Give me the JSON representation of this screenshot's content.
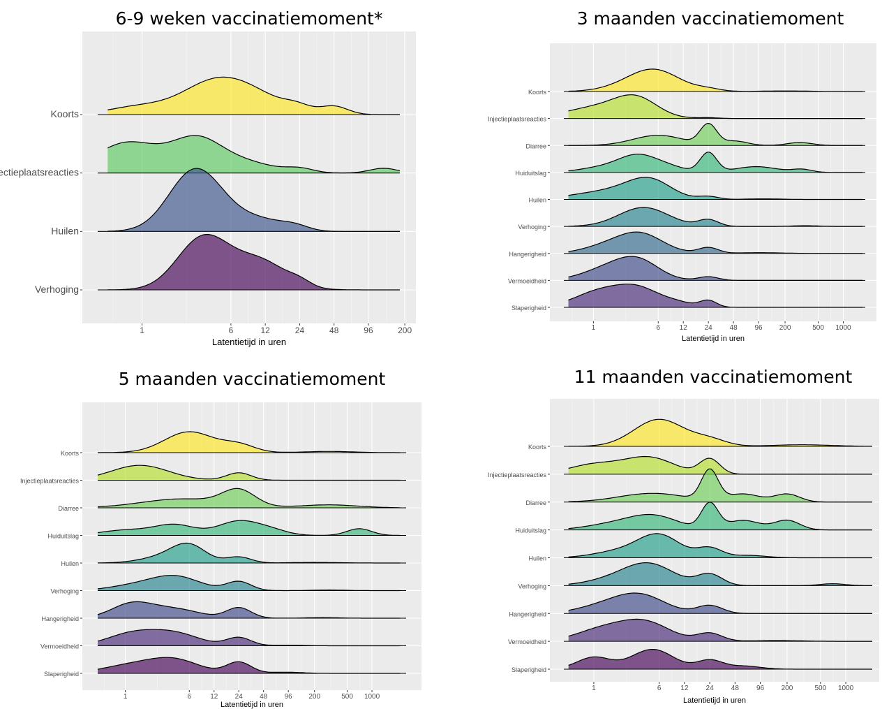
{
  "titles": {
    "c1": "6-9 weken vaccinatiemoment*",
    "c2": "3 maanden vaccinatiemoment",
    "c3": "5 maanden vaccinatiemoment",
    "c4": "11 maanden vaccinatiemoment"
  },
  "chart_data": [
    {
      "type": "area",
      "title": "6-9 weken vaccinatiemoment*",
      "xlabel": "Latentietijd in uren",
      "ylabel": "",
      "x_scale": "log",
      "xlim": [
        0.3,
        250
      ],
      "x_ticks": [
        1,
        6,
        12,
        24,
        48,
        96,
        200
      ],
      "grid": true,
      "series": [
        {
          "name": "Koorts",
          "color": "#fde725",
          "peaks": [
            [
              0.9,
              0.22,
              0.25
            ],
            [
              4.5,
              1.0,
              0.3
            ],
            [
              11,
              0.3,
              0.25
            ],
            [
              23,
              0.18,
              0.12
            ],
            [
              48,
              0.24,
              0.12
            ]
          ]
        },
        {
          "name": "Injectieplaatsreacties",
          "color": "#5ec962",
          "peaks": [
            [
              0.75,
              0.9,
              0.28
            ],
            [
              3,
              0.95,
              0.22
            ],
            [
              8,
              0.3,
              0.25
            ],
            [
              24,
              0.12,
              0.12
            ],
            [
              130,
              0.14,
              0.12
            ]
          ]
        },
        {
          "name": "Huilen",
          "color": "#3b528b",
          "peaks": [
            [
              2.8,
              1.5,
              0.22
            ],
            [
              5,
              0.5,
              0.3
            ],
            [
              13,
              0.15,
              0.18
            ],
            [
              22,
              0.13,
              0.12
            ]
          ]
        },
        {
          "name": "Verhoging",
          "color": "#440154",
          "peaks": [
            [
              3.3,
              1.3,
              0.22
            ],
            [
              7,
              0.55,
              0.3
            ],
            [
              12,
              0.45,
              0.2
            ],
            [
              24,
              0.15,
              0.1
            ]
          ]
        }
      ]
    },
    {
      "type": "area",
      "title": "3 maanden vaccinatiemoment",
      "xlabel": "Latentietijd in uren",
      "ylabel": "",
      "x_scale": "log",
      "xlim": [
        0.3,
        2500
      ],
      "x_ticks": [
        1,
        6,
        12,
        24,
        48,
        96,
        200,
        500,
        1000
      ],
      "grid": true,
      "series": [
        {
          "name": "Koorts",
          "color": "#fde725",
          "peaks": [
            [
              5.5,
              1.4,
              0.3
            ],
            [
              2.5,
              0.25,
              0.3
            ],
            [
              24,
              0.15,
              0.15
            ],
            [
              200,
              0.04,
              0.3
            ]
          ]
        },
        {
          "name": "Injectieplaatsreacties",
          "color": "#b5de2b",
          "peaks": [
            [
              1.2,
              0.8,
              0.4
            ],
            [
              3.3,
              1.15,
              0.25
            ],
            [
              24,
              0.05,
              0.12
            ]
          ]
        },
        {
          "name": "Diarree",
          "color": "#6ece58",
          "peaks": [
            [
              6,
              0.7,
              0.3
            ],
            [
              24,
              1.4,
              0.1
            ],
            [
              50,
              0.3,
              0.15
            ],
            [
              300,
              0.2,
              0.15
            ]
          ]
        },
        {
          "name": "Huiduitslag",
          "color": "#35b779",
          "peaks": [
            [
              1.5,
              0.4,
              0.3
            ],
            [
              3.5,
              1.0,
              0.22
            ],
            [
              8,
              0.35,
              0.2
            ],
            [
              24,
              1.35,
              0.1
            ],
            [
              90,
              0.4,
              0.25
            ],
            [
              320,
              0.2,
              0.12
            ]
          ]
        },
        {
          "name": "Huilen",
          "color": "#1f9e89",
          "peaks": [
            [
              0.8,
              0.3,
              0.3
            ],
            [
              2.5,
              0.6,
              0.3
            ],
            [
              5,
              1.1,
              0.25
            ],
            [
              24,
              0.2,
              0.12
            ],
            [
              110,
              0.04,
              0.2
            ]
          ]
        },
        {
          "name": "Verhoging",
          "color": "#26828e",
          "peaks": [
            [
              4,
              1.3,
              0.3
            ],
            [
              24,
              0.45,
              0.12
            ],
            [
              350,
              0.05,
              0.15
            ]
          ]
        },
        {
          "name": "Hangerigheid",
          "color": "#31688e",
          "peaks": [
            [
              1.2,
              0.35,
              0.25
            ],
            [
              3.5,
              1.4,
              0.28
            ],
            [
              24,
              0.4,
              0.12
            ],
            [
              100,
              0.05,
              0.25
            ]
          ]
        },
        {
          "name": "Vermoeidheid",
          "color": "#3e4989",
          "peaks": [
            [
              1.5,
              0.8,
              0.3
            ],
            [
              3.5,
              1.2,
              0.25
            ],
            [
              24,
              0.25,
              0.12
            ]
          ]
        },
        {
          "name": "Slaperigheid",
          "color": "#482878",
          "peaks": [
            [
              1.2,
              1.1,
              0.3
            ],
            [
              3.5,
              1.15,
              0.25
            ],
            [
              10,
              0.3,
              0.2
            ],
            [
              24,
              0.45,
              0.1
            ]
          ]
        }
      ]
    },
    {
      "type": "area",
      "title": "5 maanden vaccinatiemoment",
      "xlabel": "Latentietijd in uren",
      "ylabel": "",
      "x_scale": "log",
      "xlim": [
        0.3,
        4000
      ],
      "x_ticks": [
        1,
        6,
        12,
        24,
        48,
        96,
        200,
        500,
        1000
      ],
      "grid": true,
      "series": [
        {
          "name": "Koorts",
          "color": "#fde725",
          "peaks": [
            [
              6,
              1.4,
              0.3
            ],
            [
              24,
              0.5,
              0.2
            ],
            [
              300,
              0.08,
              0.3
            ]
          ]
        },
        {
          "name": "Injectieplaatsreacties",
          "color": "#b5de2b",
          "peaks": [
            [
              1.5,
              1.0,
              0.35
            ],
            [
              24,
              0.5,
              0.15
            ]
          ]
        },
        {
          "name": "Diarree",
          "color": "#6ece58",
          "peaks": [
            [
              5,
              0.6,
              0.5
            ],
            [
              24,
              1.05,
              0.2
            ],
            [
              300,
              0.2,
              0.35
            ]
          ]
        },
        {
          "name": "Huiduitslag",
          "color": "#35b779",
          "peaks": [
            [
              1,
              0.35,
              0.3
            ],
            [
              4,
              0.7,
              0.25
            ],
            [
              24,
              0.95,
              0.25
            ],
            [
              60,
              0.3,
              0.2
            ],
            [
              700,
              0.45,
              0.15
            ]
          ]
        },
        {
          "name": "Huilen",
          "color": "#1f9e89",
          "peaks": [
            [
              3.5,
              0.5,
              0.3
            ],
            [
              6,
              0.95,
              0.2
            ],
            [
              24,
              0.4,
              0.15
            ],
            [
              200,
              0.04,
              0.3
            ]
          ]
        },
        {
          "name": "Verhoging",
          "color": "#26828e",
          "peaks": [
            [
              1.2,
              0.3,
              0.3
            ],
            [
              4,
              0.95,
              0.3
            ],
            [
              24,
              0.6,
              0.15
            ],
            [
              300,
              0.04,
              0.2
            ]
          ]
        },
        {
          "name": "Hangerigheid",
          "color": "#3e4989",
          "peaks": [
            [
              1.2,
              0.95,
              0.25
            ],
            [
              4,
              0.6,
              0.3
            ],
            [
              24,
              0.7,
              0.15
            ],
            [
              250,
              0.04,
              0.2
            ]
          ]
        },
        {
          "name": "Vermoeidheid",
          "color": "#482878",
          "peaks": [
            [
              1.2,
              0.8,
              0.3
            ],
            [
              4,
              0.8,
              0.3
            ],
            [
              24,
              0.55,
              0.15
            ],
            [
              96,
              0.04,
              0.2
            ]
          ]
        },
        {
          "name": "Slaperigheid",
          "color": "#440154",
          "peaks": [
            [
              1.2,
              0.55,
              0.35
            ],
            [
              4,
              0.85,
              0.3
            ],
            [
              24,
              0.75,
              0.15
            ],
            [
              90,
              0.08,
              0.2
            ]
          ]
        }
      ]
    },
    {
      "type": "area",
      "title": "11 maanden vaccinatiemoment",
      "xlabel": "Latentietijd in uren",
      "ylabel": "",
      "x_scale": "log",
      "xlim": [
        0.3,
        2500
      ],
      "x_ticks": [
        1,
        6,
        12,
        24,
        48,
        96,
        200,
        500,
        1000
      ],
      "grid": true,
      "series": [
        {
          "name": "Koorts",
          "color": "#fde725",
          "peaks": [
            [
              6,
              1.7,
              0.3
            ],
            [
              24,
              0.4,
              0.2
            ],
            [
              300,
              0.1,
              0.35
            ]
          ]
        },
        {
          "name": "Injectieplaatsreacties",
          "color": "#b5de2b",
          "peaks": [
            [
              1,
              0.6,
              0.3
            ],
            [
              4.5,
              1.05,
              0.3
            ],
            [
              24,
              0.95,
              0.12
            ]
          ]
        },
        {
          "name": "Diarree",
          "color": "#6ece58",
          "peaks": [
            [
              5,
              0.55,
              0.4
            ],
            [
              24,
              1.9,
              0.1
            ],
            [
              60,
              0.5,
              0.2
            ],
            [
              200,
              0.5,
              0.15
            ]
          ]
        },
        {
          "name": "Huiduitslag",
          "color": "#35b779",
          "peaks": [
            [
              1.5,
              0.3,
              0.3
            ],
            [
              5,
              0.9,
              0.3
            ],
            [
              24,
              1.6,
              0.1
            ],
            [
              60,
              0.6,
              0.2
            ],
            [
              200,
              0.6,
              0.15
            ]
          ]
        },
        {
          "name": "Huilen",
          "color": "#1f9e89",
          "peaks": [
            [
              2,
              0.4,
              0.3
            ],
            [
              6,
              1.4,
              0.25
            ],
            [
              24,
              0.6,
              0.15
            ],
            [
              70,
              0.15,
              0.2
            ]
          ]
        },
        {
          "name": "Verhoging",
          "color": "#26828e",
          "peaks": [
            [
              1.5,
              0.3,
              0.3
            ],
            [
              4.5,
              1.35,
              0.3
            ],
            [
              24,
              0.7,
              0.15
            ],
            [
              700,
              0.12,
              0.15
            ]
          ]
        },
        {
          "name": "Hangerigheid",
          "color": "#3e4989",
          "peaks": [
            [
              1.2,
              0.4,
              0.3
            ],
            [
              3.5,
              1.15,
              0.3
            ],
            [
              24,
              0.5,
              0.15
            ]
          ]
        },
        {
          "name": "Vermoeidheid",
          "color": "#482878",
          "peaks": [
            [
              1.2,
              0.7,
              0.3
            ],
            [
              4,
              1.2,
              0.3
            ],
            [
              24,
              0.5,
              0.15
            ],
            [
              150,
              0.05,
              0.3
            ]
          ]
        },
        {
          "name": "Slaperigheid",
          "color": "#440154",
          "peaks": [
            [
              1,
              0.75,
              0.2
            ],
            [
              5,
              1.25,
              0.25
            ],
            [
              24,
              0.55,
              0.15
            ],
            [
              60,
              0.2,
              0.2
            ]
          ]
        }
      ]
    }
  ]
}
